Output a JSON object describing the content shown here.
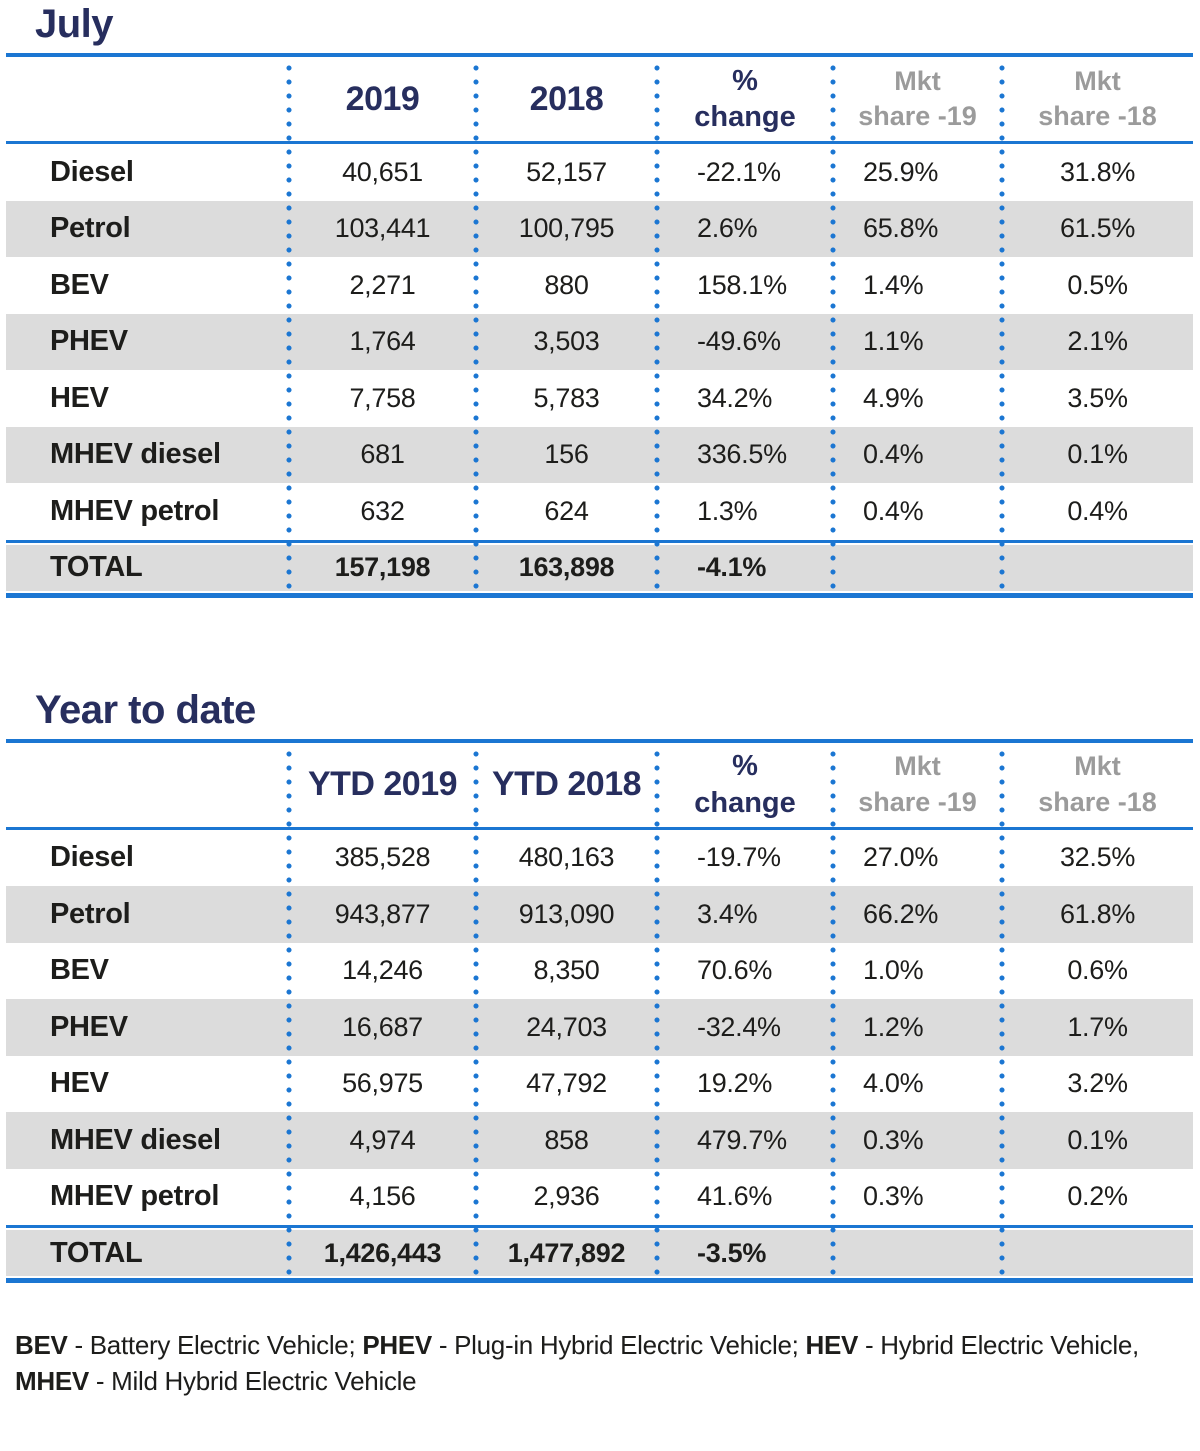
{
  "colors": {
    "title_navy": "#272e5e",
    "line_blue": "#1b76d2",
    "row_band_gray": "#dcdcdc",
    "muted_header_gray": "#9b9b9b",
    "text_ink": "#1d1d1b"
  },
  "tables": [
    {
      "title": "July",
      "header": {
        "col_label": "",
        "col1": "2019",
        "col2": "2018",
        "change_l1": "%",
        "change_l2": "change",
        "mkt19_l1": "Mkt",
        "mkt19_l2": "share -19",
        "mkt18_l1": "Mkt",
        "mkt18_l2": "share -18"
      },
      "rows": [
        {
          "label": "Diesel",
          "y1": "40,651",
          "y2": "52,157",
          "change": "-22.1%",
          "s19": "25.9%",
          "s18": "31.8%"
        },
        {
          "label": "Petrol",
          "y1": "103,441",
          "y2": "100,795",
          "change": "2.6%",
          "s19": "65.8%",
          "s18": "61.5%"
        },
        {
          "label": "BEV",
          "y1": "2,271",
          "y2": "880",
          "change": "158.1%",
          "s19": "1.4%",
          "s18": "0.5%"
        },
        {
          "label": "PHEV",
          "y1": "1,764",
          "y2": "3,503",
          "change": "-49.6%",
          "s19": "1.1%",
          "s18": "2.1%"
        },
        {
          "label": "HEV",
          "y1": "7,758",
          "y2": "5,783",
          "change": "34.2%",
          "s19": "4.9%",
          "s18": "3.5%"
        },
        {
          "label": "MHEV diesel",
          "y1": "681",
          "y2": "156",
          "change": "336.5%",
          "s19": "0.4%",
          "s18": "0.1%"
        },
        {
          "label": "MHEV petrol",
          "y1": "632",
          "y2": "624",
          "change": "1.3%",
          "s19": "0.4%",
          "s18": "0.4%"
        }
      ],
      "total": {
        "label": "TOTAL",
        "y1": "157,198",
        "y2": "163,898",
        "change": "-4.1%",
        "s19": "",
        "s18": ""
      }
    },
    {
      "title": "Year to date",
      "header": {
        "col_label": "",
        "col1": "YTD 2019",
        "col2": "YTD 2018",
        "change_l1": "%",
        "change_l2": "change",
        "mkt19_l1": "Mkt",
        "mkt19_l2": "share -19",
        "mkt18_l1": "Mkt",
        "mkt18_l2": "share -18"
      },
      "rows": [
        {
          "label": "Diesel",
          "y1": "385,528",
          "y2": "480,163",
          "change": "-19.7%",
          "s19": "27.0%",
          "s18": "32.5%"
        },
        {
          "label": "Petrol",
          "y1": "943,877",
          "y2": "913,090",
          "change": "3.4%",
          "s19": "66.2%",
          "s18": "61.8%"
        },
        {
          "label": "BEV",
          "y1": "14,246",
          "y2": "8,350",
          "change": "70.6%",
          "s19": "1.0%",
          "s18": "0.6%"
        },
        {
          "label": "PHEV",
          "y1": "16,687",
          "y2": "24,703",
          "change": "-32.4%",
          "s19": "1.2%",
          "s18": "1.7%"
        },
        {
          "label": "HEV",
          "y1": "56,975",
          "y2": "47,792",
          "change": "19.2%",
          "s19": "4.0%",
          "s18": "3.2%"
        },
        {
          "label": "MHEV diesel",
          "y1": "4,974",
          "y2": "858",
          "change": "479.7%",
          "s19": "0.3%",
          "s18": "0.1%"
        },
        {
          "label": "MHEV petrol",
          "y1": "4,156",
          "y2": "2,936",
          "change": "41.6%",
          "s19": "0.3%",
          "s18": "0.2%"
        }
      ],
      "total": {
        "label": "TOTAL",
        "y1": "1,426,443",
        "y2": "1,477,892",
        "change": "-3.5%",
        "s19": "",
        "s18": ""
      }
    }
  ],
  "footnote": {
    "items": [
      {
        "abbr": "BEV",
        "desc": " - Battery Electric Vehicle; "
      },
      {
        "abbr": "PHEV",
        "desc": " - Plug-in Hybrid Electric Vehicle; "
      },
      {
        "abbr": "HEV",
        "desc": " - Hybrid Electric Vehicle, "
      },
      {
        "abbr": "MHEV",
        "desc": " - Mild Hybrid Electric Vehicle"
      }
    ]
  }
}
